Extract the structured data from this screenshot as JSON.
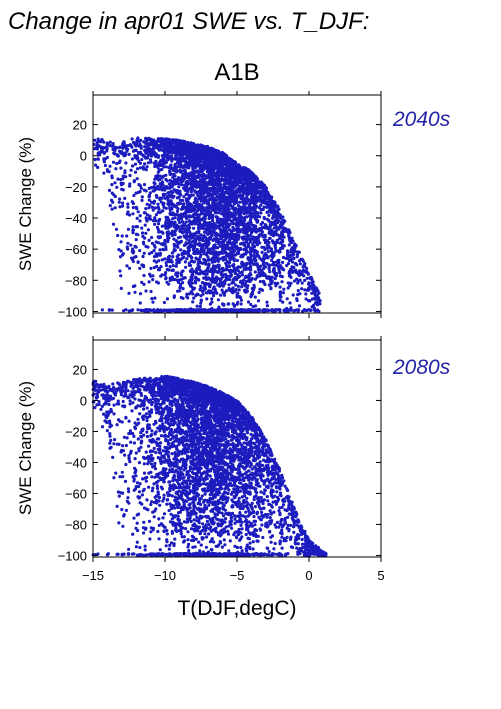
{
  "figure": {
    "title": "Change in apr01 SWE vs. T_DJF:",
    "scenario": "A1B"
  },
  "colors": {
    "points": "#1c1cbe",
    "period_label": "#2323a8",
    "axes": "#000000"
  },
  "chart_data": [
    {
      "type": "scatter",
      "panel_label": "2040s",
      "xlabel": "",
      "ylabel": "SWE Change (%)",
      "xlim": [
        -15,
        5
      ],
      "ylim": [
        -101,
        39
      ],
      "xticks": [
        -15,
        -10,
        -5,
        0,
        5
      ],
      "yticks": [
        20,
        0,
        -20,
        -40,
        -60,
        -80,
        -100
      ],
      "ytick_labels": [
        "20",
        "0",
        "−20",
        "−40",
        "−60",
        "−80",
        "−100"
      ],
      "xtick_labels": [],
      "grid": false,
      "envelope": {
        "x": [
          -15,
          -14,
          -13,
          -12,
          -11,
          -10,
          -9,
          -8,
          -7,
          -6,
          -5,
          -4,
          -3,
          -2,
          -1,
          0,
          0.8
        ],
        "y_max": [
          12,
          10,
          9,
          12,
          11,
          11,
          10,
          8,
          6,
          2,
          -5,
          -10,
          -20,
          -35,
          -55,
          -75,
          -90
        ],
        "y_min": [
          -5,
          -20,
          -100,
          -100,
          -100,
          -100,
          -100,
          -100,
          -100,
          -100,
          -100,
          -100,
          -100,
          -100,
          -100,
          -100,
          -100
        ]
      },
      "density_center": {
        "x": -6.5,
        "y": -40
      }
    },
    {
      "type": "scatter",
      "panel_label": "2080s",
      "xlabel": "T(DJF,degC)",
      "ylabel": "SWE Change (%)",
      "xlim": [
        -15,
        5
      ],
      "ylim": [
        -101,
        39
      ],
      "xticks": [
        -15,
        -10,
        -5,
        0,
        5
      ],
      "xtick_labels": [
        "−15",
        "−10",
        "−5",
        "0",
        "5"
      ],
      "yticks": [
        20,
        0,
        -20,
        -40,
        -60,
        -80,
        -100
      ],
      "ytick_labels": [
        "20",
        "0",
        "−20",
        "−40",
        "−60",
        "−80",
        "−100"
      ],
      "grid": false,
      "envelope": {
        "x": [
          -15,
          -14,
          -13,
          -12,
          -11,
          -10,
          -9,
          -8,
          -7,
          -6,
          -5,
          -4,
          -3,
          -2,
          -1,
          0,
          1.2
        ],
        "y_max": [
          13,
          10,
          12,
          14,
          15,
          16,
          14,
          12,
          9,
          5,
          0,
          -10,
          -25,
          -45,
          -70,
          -90,
          -99
        ],
        "y_min": [
          -5,
          -30,
          -100,
          -100,
          -100,
          -100,
          -100,
          -100,
          -100,
          -100,
          -100,
          -100,
          -100,
          -100,
          -100,
          -100,
          -100
        ]
      },
      "density_center": {
        "x": -7,
        "y": -65
      }
    }
  ]
}
